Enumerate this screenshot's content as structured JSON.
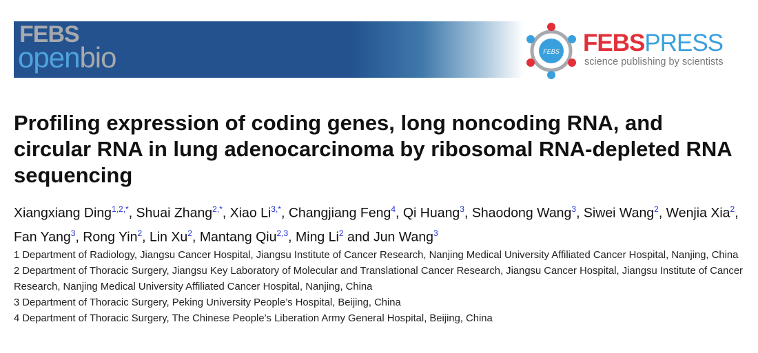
{
  "journal_banner": {
    "line1": "FEBS",
    "line2_a": "open",
    "line2_b": "bio"
  },
  "publisher_logo": {
    "name_a": "FEBS",
    "name_b": "PRESS",
    "tagline": "science publishing by scientists",
    "badge": "FEBS",
    "colors": {
      "red": "#e2303a",
      "blue": "#3aa0dd",
      "grey": "#a6a9ad"
    }
  },
  "title": "Profiling expression of coding genes, long noncoding RNA, and circular RNA in lung adenocarcinoma by ribosomal RNA-depleted RNA sequencing",
  "authors": [
    {
      "name": "Xiangxiang Ding",
      "sup": "1,2,*",
      "sep": ", "
    },
    {
      "name": "Shuai Zhang",
      "sup": "2,*",
      "sep": ", "
    },
    {
      "name": "Xiao Li",
      "sup": "3,*",
      "sep": ", "
    },
    {
      "name": "Changjiang Feng",
      "sup": "4",
      "sep": ", "
    },
    {
      "name": "Qi Huang",
      "sup": "3",
      "sep": ", "
    },
    {
      "name": "Shaodong Wang",
      "sup": "3",
      "sep": ", "
    },
    {
      "name": "Siwei Wang",
      "sup": "2",
      "sep": ", "
    },
    {
      "name": "Wenjia Xia",
      "sup": "2",
      "sep": ", "
    },
    {
      "name": "Fan Yang",
      "sup": "3",
      "sep": ", "
    },
    {
      "name": "Rong Yin",
      "sup": "2",
      "sep": ", "
    },
    {
      "name": "Lin Xu",
      "sup": "2",
      "sep": ", "
    },
    {
      "name": "Mantang Qiu",
      "sup": "2,3",
      "sep": ", "
    },
    {
      "name": "Ming Li",
      "sup": "2",
      "sep": " and "
    },
    {
      "name": "Jun Wang",
      "sup": "3",
      "sep": ""
    }
  ],
  "affiliations": [
    "1 Department of Radiology, Jiangsu Cancer Hospital, Jiangsu Institute of Cancer Research, Nanjing Medical University Affiliated Cancer Hospital, Nanjing, China",
    "2 Department of Thoracic Surgery, Jiangsu Key Laboratory of Molecular and Translational Cancer Research, Jiangsu Cancer Hospital, Jiangsu Institute of Cancer Research, Nanjing Medical University Affiliated Cancer Hospital, Nanjing, China",
    "3 Department of Thoracic Surgery, Peking University People’s Hospital, Beijing, China",
    "4 Department of Thoracic Surgery, The Chinese People’s Liberation Army General Hospital, Beijing, China"
  ]
}
